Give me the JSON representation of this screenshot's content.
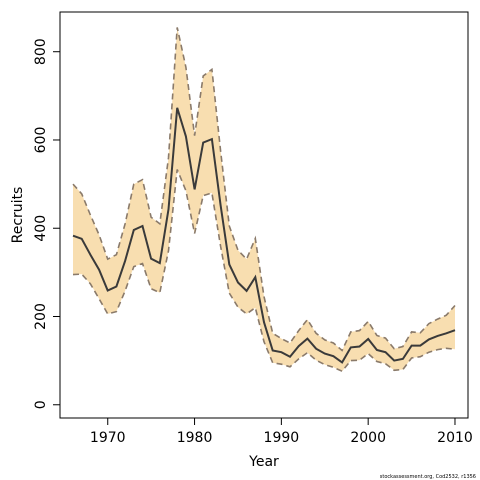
{
  "chart_data": {
    "type": "area",
    "title": "",
    "xlabel": "Year",
    "ylabel": "Recruits",
    "xlim": [
      1964.5,
      2011.5
    ],
    "ylim": [
      -30,
      890
    ],
    "x_ticks": [
      1970,
      1980,
      1990,
      2000,
      2010
    ],
    "y_ticks": [
      0,
      200,
      400,
      600,
      800
    ],
    "grid": false,
    "legend": "none",
    "credit": "stockassessment.org, Cod2532, r1356",
    "colors": {
      "band_fill": "#f8deb0",
      "band_edge": "#8a7a6a",
      "line": "#3a3a3a"
    },
    "x": [
      1966,
      1967,
      1968,
      1969,
      1970,
      1971,
      1972,
      1973,
      1974,
      1975,
      1976,
      1977,
      1978,
      1979,
      1980,
      1981,
      1982,
      1983,
      1984,
      1985,
      1986,
      1987,
      1988,
      1989,
      1990,
      1991,
      1992,
      1993,
      1994,
      1995,
      1996,
      1997,
      1998,
      1999,
      2000,
      2001,
      2002,
      2003,
      2004,
      2005,
      2006,
      2007,
      2008,
      2009,
      2010
    ],
    "series": [
      {
        "values": [
          383,
          376,
          340,
          306,
          259,
          268,
          326,
          396,
          405,
          331,
          321,
          443,
          673,
          608,
          488,
          594,
          602,
          452,
          318,
          277,
          258,
          289,
          187,
          123,
          119,
          109,
          133,
          150,
          127,
          116,
          110,
          96,
          130,
          132,
          149,
          124,
          119,
          100,
          104,
          134,
          134,
          148,
          156,
          162,
          169
        ]
      },
      {
        "values": [
          500,
          478,
          430,
          385,
          330,
          340,
          410,
          500,
          510,
          425,
          410,
          560,
          855,
          765,
          610,
          745,
          760,
          575,
          405,
          350,
          330,
          377,
          245,
          162,
          150,
          140,
          168,
          193,
          162,
          147,
          140,
          123,
          165,
          168,
          189,
          157,
          151,
          127,
          132,
          165,
          163,
          184,
          194,
          203,
          225
        ]
      },
      {
        "values": [
          295,
          296,
          274,
          240,
          206,
          211,
          258,
          313,
          320,
          263,
          254,
          349,
          533,
          485,
          388,
          474,
          480,
          359,
          253,
          221,
          206,
          220,
          143,
          95,
          92,
          86,
          104,
          118,
          101,
          91,
          85,
          76,
          100,
          101,
          116,
          98,
          93,
          78,
          80,
          106,
          109,
          119,
          125,
          128,
          126
        ]
      }
    ]
  }
}
